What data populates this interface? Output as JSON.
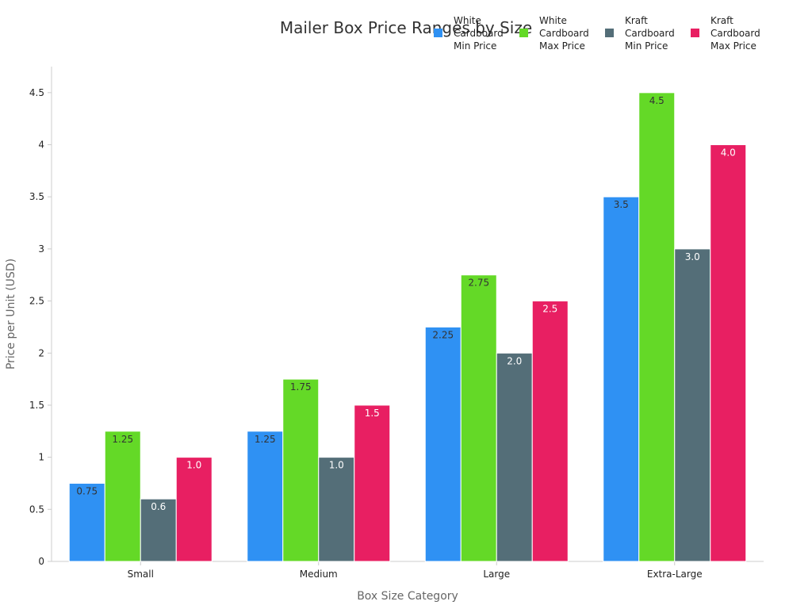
{
  "chart_data": {
    "type": "bar",
    "title": "Mailer Box Price Ranges by Size",
    "xlabel": "Box Size Category",
    "ylabel": "Price per Unit (USD)",
    "categories": [
      "Small",
      "Medium",
      "Large",
      "Extra-Large"
    ],
    "ylim": [
      0,
      4.75
    ],
    "yticks": [
      0,
      0.5,
      1,
      1.5,
      2,
      2.5,
      3,
      3.5,
      4,
      4.5
    ],
    "ytick_labels": [
      "0",
      "0.5",
      "1",
      "1.5",
      "2",
      "2.5",
      "3",
      "3.5",
      "4",
      "4.5"
    ],
    "grid": false,
    "legend_position": "top-right",
    "series": [
      {
        "name": "White Cardboard Min Price",
        "name_lines": [
          "White",
          "Cardboard",
          "Min Price"
        ],
        "color": "#2f91f3",
        "label_color": "#333333",
        "values": [
          0.75,
          1.25,
          2.25,
          3.5
        ],
        "labels": [
          "0.75",
          "1.25",
          "2.25",
          "3.5"
        ]
      },
      {
        "name": "White Cardboard Max Price",
        "name_lines": [
          "White",
          "Cardboard",
          "Max Price"
        ],
        "color": "#64d927",
        "label_color": "#333333",
        "values": [
          1.25,
          1.75,
          2.75,
          4.5
        ],
        "labels": [
          "1.25",
          "1.75",
          "2.75",
          "4.5"
        ]
      },
      {
        "name": "Kraft Cardboard Min Price",
        "name_lines": [
          "Kraft",
          "Cardboard",
          "Min Price"
        ],
        "color": "#546e78",
        "label_color": "#ffffff",
        "values": [
          0.6,
          1.0,
          2.0,
          3.0
        ],
        "labels": [
          "0.6",
          "1.0",
          "2.0",
          "3.0"
        ]
      },
      {
        "name": "Kraft Cardboard Max Price",
        "name_lines": [
          "Kraft",
          "Cardboard",
          "Max Price"
        ],
        "color": "#e81f62",
        "label_color": "#ffffff",
        "values": [
          1.0,
          1.5,
          2.5,
          4.0
        ],
        "labels": [
          "1.0",
          "1.5",
          "2.5",
          "4.0"
        ]
      }
    ]
  }
}
